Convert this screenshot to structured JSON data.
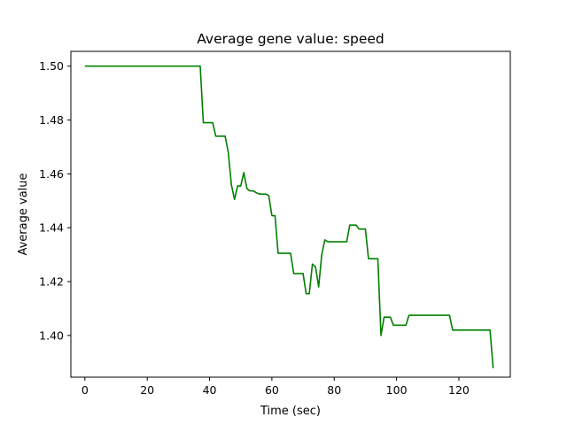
{
  "chart_data": {
    "type": "line",
    "title": "Average gene value: speed",
    "xlabel": "Time (sec)",
    "ylabel": "Average value",
    "xlim": [
      -4.5,
      136.5
    ],
    "ylim": [
      1.3845,
      1.5055
    ],
    "xticks": [
      0,
      20,
      40,
      60,
      80,
      100,
      120
    ],
    "xtick_labels": [
      "0",
      "20",
      "40",
      "60",
      "80",
      "100",
      "120"
    ],
    "yticks": [
      1.4,
      1.42,
      1.44,
      1.46,
      1.48,
      1.5
    ],
    "ytick_labels": [
      "1.40",
      "1.42",
      "1.44",
      "1.46",
      "1.48",
      "1.50"
    ],
    "grid": false,
    "series": [
      {
        "color": "#008000",
        "x": [
          0,
          37,
          38,
          39,
          40,
          41,
          42,
          44,
          45,
          46,
          47,
          48,
          49,
          50,
          51,
          52,
          53,
          54,
          55,
          56,
          57,
          58,
          59,
          60,
          61,
          62,
          63,
          64,
          65,
          66,
          67,
          68,
          69,
          70,
          71,
          72,
          73,
          74,
          75,
          76,
          77,
          78,
          80,
          82,
          84,
          85,
          86,
          87,
          88,
          89,
          90,
          91,
          92,
          94,
          95,
          96,
          97,
          98,
          99,
          100,
          101,
          102,
          103,
          104,
          105,
          110,
          115,
          117,
          118,
          120,
          125,
          130,
          131
        ],
        "y": [
          1.5,
          1.5,
          1.479,
          1.479,
          1.479,
          1.479,
          1.474,
          1.474,
          1.474,
          1.468,
          1.456,
          1.4505,
          1.4555,
          1.4555,
          1.4605,
          1.4545,
          1.4537,
          1.4537,
          1.453,
          1.4525,
          1.4525,
          1.4525,
          1.452,
          1.4445,
          1.4445,
          1.4305,
          1.4305,
          1.4305,
          1.4305,
          1.4305,
          1.423,
          1.423,
          1.423,
          1.423,
          1.4155,
          1.4155,
          1.4265,
          1.4255,
          1.418,
          1.43,
          1.4355,
          1.4348,
          1.4348,
          1.4348,
          1.4348,
          1.441,
          1.441,
          1.441,
          1.4395,
          1.4395,
          1.4395,
          1.4285,
          1.4285,
          1.4285,
          1.4,
          1.4068,
          1.4068,
          1.4068,
          1.4038,
          1.4038,
          1.4038,
          1.4038,
          1.4038,
          1.4075,
          1.4075,
          1.4075,
          1.4075,
          1.4075,
          1.402,
          1.402,
          1.402,
          1.402,
          1.3878
        ]
      }
    ]
  }
}
